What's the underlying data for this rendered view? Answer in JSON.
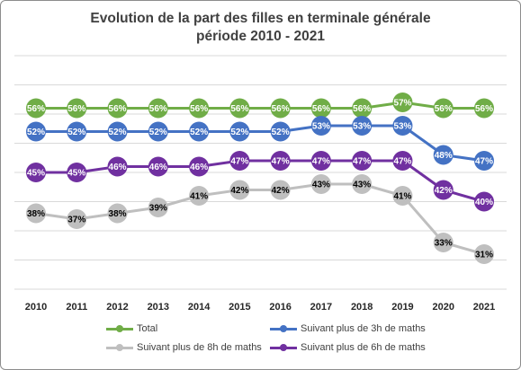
{
  "chart_data": {
    "type": "line",
    "title": "Evolution de la part des filles en terminale générale",
    "subtitle": "période 2010 - 2021",
    "xlabel": "",
    "ylabel": "",
    "categories": [
      "2010",
      "2011",
      "2012",
      "2013",
      "2014",
      "2015",
      "2016",
      "2017",
      "2018",
      "2019",
      "2020",
      "2021"
    ],
    "ylim": [
      25,
      65
    ],
    "grid": true,
    "legend_position": "bottom",
    "series": [
      {
        "name": "Total",
        "color": "#70ad47",
        "values": [
          56,
          56,
          56,
          56,
          56,
          56,
          56,
          56,
          56,
          57,
          56,
          56
        ],
        "labels": [
          "56%",
          "56%",
          "56%",
          "56%",
          "56%",
          "56%",
          "56%",
          "56%",
          "56%",
          "57%",
          "56%",
          "56%"
        ],
        "label_color": "#ffffff"
      },
      {
        "name": "Suivant plus de 3h de maths",
        "color": "#4472c4",
        "values": [
          52,
          52,
          52,
          52,
          52,
          52,
          52,
          53,
          53,
          53,
          48,
          47
        ],
        "labels": [
          "52%",
          "52%",
          "52%",
          "52%",
          "52%",
          "52%",
          "52%",
          "53%",
          "53%",
          "53%",
          "48%",
          "47%"
        ],
        "label_color": "#ffffff"
      },
      {
        "name": "Suivant plus de 8h de maths",
        "color": "#bfbfbf",
        "values": [
          38,
          37,
          38,
          39,
          41,
          42,
          42,
          43,
          43,
          41,
          33,
          31
        ],
        "labels": [
          "38%",
          "37%",
          "38%",
          "39%",
          "41%",
          "42%",
          "42%",
          "43%",
          "43%",
          "41%",
          "33%",
          "31%"
        ],
        "label_color": "#000000"
      },
      {
        "name": "Suivant plus de 6h de maths",
        "color": "#7030a0",
        "values": [
          45,
          45,
          46,
          46,
          46,
          47,
          47,
          47,
          47,
          47,
          42,
          40
        ],
        "labels": [
          "45%",
          "45%",
          "46%",
          "46%",
          "46%",
          "47%",
          "47%",
          "47%",
          "47%",
          "47%",
          "42%",
          "40%"
        ],
        "label_color": "#ffffff"
      }
    ]
  },
  "legend": {
    "item_total": "Total",
    "item_3h": "Suivant plus de 3h de maths",
    "item_8h": "Suivant plus de 8h de maths",
    "item_6h": "Suivant plus de 6h de maths"
  }
}
